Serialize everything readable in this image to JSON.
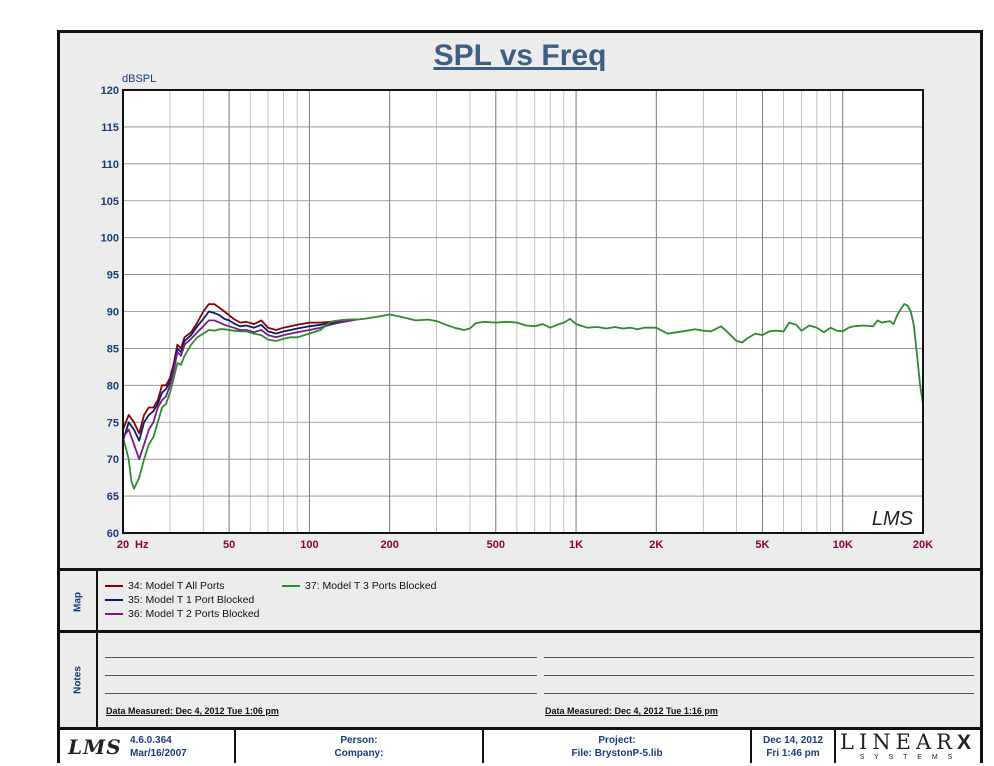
{
  "chart_data": {
    "type": "line",
    "title": "SPL vs Freq",
    "ylabel": "dBSPL",
    "xlabel": "Hz",
    "xscale": "log",
    "xlim": [
      20,
      20000
    ],
    "ylim": [
      60,
      120
    ],
    "y_ticks": [
      60,
      65,
      70,
      75,
      80,
      85,
      90,
      95,
      100,
      105,
      110,
      115,
      120
    ],
    "x_ticks": [
      {
        "value": 20,
        "label": "20"
      },
      {
        "value": 50,
        "label": "50"
      },
      {
        "value": 100,
        "label": "100"
      },
      {
        "value": 200,
        "label": "200"
      },
      {
        "value": 500,
        "label": "500"
      },
      {
        "value": 1000,
        "label": "1K"
      },
      {
        "value": 2000,
        "label": "2K"
      },
      {
        "value": 5000,
        "label": "5K"
      },
      {
        "value": 10000,
        "label": "10K"
      },
      {
        "value": 20000,
        "label": "20K"
      }
    ],
    "grid": true,
    "series": [
      {
        "name": "34: Model T All Ports",
        "color": "#8b0000",
        "points": [
          [
            20,
            74
          ],
          [
            21,
            76
          ],
          [
            22,
            75
          ],
          [
            23,
            73.5
          ],
          [
            24,
            76
          ],
          [
            25,
            77
          ],
          [
            26,
            77
          ],
          [
            27,
            78
          ],
          [
            28,
            80
          ],
          [
            29,
            80
          ],
          [
            30,
            81
          ],
          [
            31,
            83
          ],
          [
            32,
            85.5
          ],
          [
            33,
            85
          ],
          [
            34,
            86.5
          ],
          [
            36,
            87.2
          ],
          [
            38,
            88.5
          ],
          [
            40,
            90
          ],
          [
            42,
            91
          ],
          [
            44,
            91
          ],
          [
            46,
            90.5
          ],
          [
            48,
            90
          ],
          [
            50,
            89.5
          ],
          [
            52,
            89
          ],
          [
            55,
            88.5
          ],
          [
            58,
            88.6
          ],
          [
            62,
            88.3
          ],
          [
            66,
            88.8
          ],
          [
            70,
            87.8
          ],
          [
            75,
            87.5
          ],
          [
            80,
            87.8
          ],
          [
            85,
            88
          ],
          [
            90,
            88.2
          ],
          [
            100,
            88.5
          ],
          [
            110,
            88.5
          ],
          [
            120,
            88.6
          ],
          [
            130,
            88.8
          ],
          [
            140,
            88.9
          ],
          [
            150,
            88.9
          ]
        ]
      },
      {
        "name": "35: Model T 1 Port Blocked",
        "color": "#0a1c6e",
        "points": [
          [
            20,
            72.5
          ],
          [
            21,
            75
          ],
          [
            22,
            74
          ],
          [
            23,
            72.5
          ],
          [
            24,
            75
          ],
          [
            25,
            76
          ],
          [
            26,
            76.5
          ],
          [
            27,
            77.5
          ],
          [
            28,
            79
          ],
          [
            29,
            79.5
          ],
          [
            30,
            80.5
          ],
          [
            31,
            82.5
          ],
          [
            32,
            85
          ],
          [
            33,
            84.5
          ],
          [
            34,
            86
          ],
          [
            36,
            86.8
          ],
          [
            38,
            88
          ],
          [
            40,
            89
          ],
          [
            42,
            90
          ],
          [
            44,
            89.8
          ],
          [
            46,
            89.5
          ],
          [
            48,
            89
          ],
          [
            50,
            88.8
          ],
          [
            52,
            88.4
          ],
          [
            55,
            88
          ],
          [
            58,
            88.1
          ],
          [
            62,
            87.8
          ],
          [
            66,
            88.2
          ],
          [
            70,
            87.3
          ],
          [
            75,
            87
          ],
          [
            80,
            87.3
          ],
          [
            85,
            87.5
          ],
          [
            90,
            87.7
          ],
          [
            100,
            88
          ],
          [
            110,
            88.2
          ],
          [
            120,
            88.4
          ],
          [
            130,
            88.6
          ],
          [
            140,
            88.8
          ],
          [
            150,
            88.9
          ]
        ]
      },
      {
        "name": "36: Model T 2 Ports Blocked",
        "color": "#7a1a8a",
        "points": [
          [
            20,
            73
          ],
          [
            21,
            74
          ],
          [
            22,
            72
          ],
          [
            23,
            70
          ],
          [
            24,
            72
          ],
          [
            25,
            74
          ],
          [
            26,
            75
          ],
          [
            27,
            77
          ],
          [
            28,
            78
          ],
          [
            29,
            78.5
          ],
          [
            30,
            80
          ],
          [
            31,
            82
          ],
          [
            32,
            84.5
          ],
          [
            33,
            84
          ],
          [
            34,
            85.5
          ],
          [
            36,
            86.3
          ],
          [
            38,
            87.2
          ],
          [
            40,
            88
          ],
          [
            42,
            88.8
          ],
          [
            44,
            88.8
          ],
          [
            46,
            88.5
          ],
          [
            48,
            88.2
          ],
          [
            50,
            88
          ],
          [
            52,
            87.8
          ],
          [
            55,
            87.5
          ],
          [
            58,
            87.5
          ],
          [
            62,
            87.2
          ],
          [
            66,
            87.5
          ],
          [
            70,
            86.8
          ],
          [
            75,
            86.5
          ],
          [
            80,
            86.8
          ],
          [
            85,
            87
          ],
          [
            90,
            87.2
          ],
          [
            100,
            87.5
          ],
          [
            110,
            87.8
          ],
          [
            120,
            88.2
          ],
          [
            130,
            88.5
          ],
          [
            140,
            88.7
          ],
          [
            150,
            88.9
          ]
        ]
      },
      {
        "name": "37: Model T 3 Ports Blocked",
        "color": "#2e8b2e",
        "points": [
          [
            20,
            73
          ],
          [
            21,
            70
          ],
          [
            21.5,
            67
          ],
          [
            22,
            66
          ],
          [
            23,
            67.5
          ],
          [
            24,
            70
          ],
          [
            25,
            72
          ],
          [
            26,
            73
          ],
          [
            27,
            75
          ],
          [
            28,
            77
          ],
          [
            29,
            77.5
          ],
          [
            30,
            79
          ],
          [
            31,
            81
          ],
          [
            32,
            83
          ],
          [
            33,
            82.8
          ],
          [
            34,
            84
          ],
          [
            36,
            85.5
          ],
          [
            38,
            86.5
          ],
          [
            40,
            87
          ],
          [
            42,
            87.5
          ],
          [
            44,
            87.4
          ],
          [
            46,
            87.6
          ],
          [
            48,
            87.6
          ],
          [
            50,
            87.5
          ],
          [
            52,
            87.4
          ],
          [
            55,
            87.3
          ],
          [
            58,
            87.3
          ],
          [
            62,
            87
          ],
          [
            66,
            86.8
          ],
          [
            70,
            86.2
          ],
          [
            75,
            86
          ],
          [
            80,
            86.3
          ],
          [
            85,
            86.5
          ],
          [
            90,
            86.5
          ],
          [
            100,
            87
          ],
          [
            110,
            87.5
          ],
          [
            120,
            88.6
          ],
          [
            130,
            88.8
          ],
          [
            140,
            88.9
          ],
          [
            150,
            88.9
          ],
          [
            160,
            89
          ],
          [
            180,
            89.3
          ],
          [
            200,
            89.6
          ],
          [
            220,
            89.3
          ],
          [
            250,
            88.8
          ],
          [
            280,
            88.9
          ],
          [
            300,
            88.7
          ],
          [
            320,
            88.3
          ],
          [
            350,
            87.8
          ],
          [
            380,
            87.5
          ],
          [
            400,
            87.7
          ],
          [
            420,
            88.4
          ],
          [
            450,
            88.6
          ],
          [
            500,
            88.5
          ],
          [
            550,
            88.6
          ],
          [
            600,
            88.5
          ],
          [
            650,
            88.1
          ],
          [
            700,
            88
          ],
          [
            750,
            88.3
          ],
          [
            800,
            87.8
          ],
          [
            850,
            88.2
          ],
          [
            900,
            88.5
          ],
          [
            950,
            89
          ],
          [
            1000,
            88.3
          ],
          [
            1100,
            87.8
          ],
          [
            1200,
            87.9
          ],
          [
            1300,
            87.7
          ],
          [
            1400,
            87.9
          ],
          [
            1500,
            87.7
          ],
          [
            1600,
            87.8
          ],
          [
            1700,
            87.6
          ],
          [
            1800,
            87.8
          ],
          [
            2000,
            87.8
          ],
          [
            2200,
            87
          ],
          [
            2400,
            87.2
          ],
          [
            2600,
            87.4
          ],
          [
            2800,
            87.6
          ],
          [
            3000,
            87.4
          ],
          [
            3200,
            87.3
          ],
          [
            3500,
            88
          ],
          [
            3700,
            87.2
          ],
          [
            4000,
            86
          ],
          [
            4200,
            85.8
          ],
          [
            4400,
            86.4
          ],
          [
            4700,
            87
          ],
          [
            5000,
            86.8
          ],
          [
            5300,
            87.3
          ],
          [
            5600,
            87.4
          ],
          [
            6000,
            87.3
          ],
          [
            6300,
            88.5
          ],
          [
            6700,
            88.2
          ],
          [
            7000,
            87.4
          ],
          [
            7500,
            88.1
          ],
          [
            8000,
            87.8
          ],
          [
            8500,
            87.2
          ],
          [
            9000,
            87.8
          ],
          [
            9500,
            87.4
          ],
          [
            10000,
            87.3
          ],
          [
            10500,
            87.8
          ],
          [
            11000,
            88
          ],
          [
            12000,
            88.1
          ],
          [
            13000,
            88
          ],
          [
            13500,
            88.8
          ],
          [
            14000,
            88.5
          ],
          [
            15000,
            88.7
          ],
          [
            15500,
            88.3
          ],
          [
            16000,
            89.5
          ],
          [
            16500,
            90.3
          ],
          [
            17000,
            91
          ],
          [
            17500,
            90.8
          ],
          [
            18000,
            90
          ],
          [
            18500,
            88
          ],
          [
            19000,
            84
          ],
          [
            19500,
            80
          ],
          [
            20000,
            77.5
          ]
        ]
      }
    ]
  },
  "header": {
    "ylabel_unit": "dBSPL",
    "hz_unit": "Hz",
    "watermark": "LMS"
  },
  "map": {
    "label": "Map",
    "entries": [
      {
        "text": "34: Model T All Ports",
        "color": "#8b0000"
      },
      {
        "text": "35: Model T 1 Port Blocked",
        "color": "#0a1c6e"
      },
      {
        "text": "36: Model T 2 Ports Blocked",
        "color": "#7a1a8a"
      },
      {
        "text": "37: Model T 3 Ports Blocked",
        "color": "#2e8b2e"
      }
    ]
  },
  "notes": {
    "label": "Notes",
    "measured_left": "Data Measured: Dec  4, 2012  Tue  1:06 pm",
    "measured_right": "Data Measured: Dec  4, 2012  Tue  1:16 pm"
  },
  "footer": {
    "logo": "LMS",
    "version": "4.6.0.364",
    "version_date": "Mar/16/2007",
    "person": "Person:",
    "company": "Company:",
    "project": "Project:",
    "file": "File: BrystonP-5.lib",
    "date": "Dec 14, 2012",
    "time": "Fri  1:46 pm",
    "brand_top": "LINEAR",
    "brand_x": "X",
    "brand_bottom": "S Y S T E M S"
  }
}
